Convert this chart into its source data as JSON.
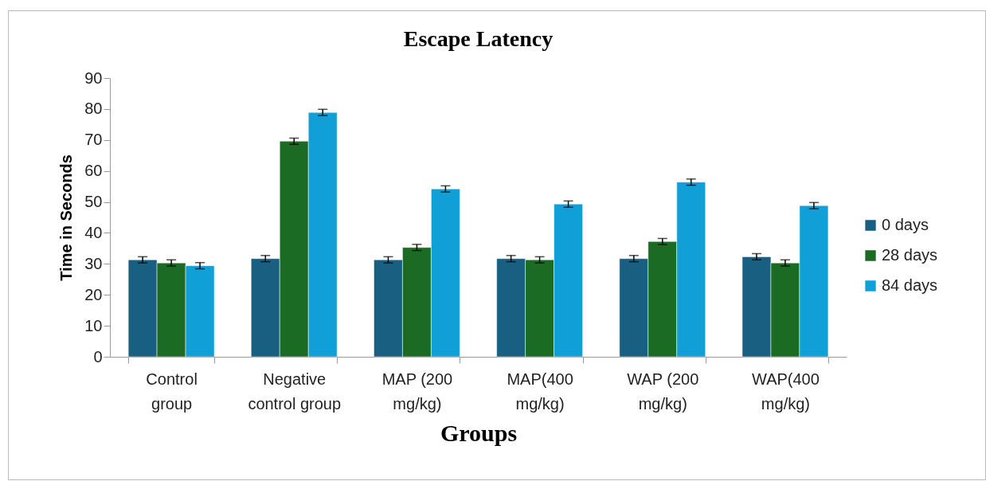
{
  "chart_data": {
    "type": "bar",
    "title": "Escape Latency",
    "xlabel": "Groups",
    "ylabel": "Time in Seconds",
    "categories": [
      "Control group",
      "Negative control group",
      "MAP (200 mg/kg)",
      "MAP(400 mg/kg)",
      "WAP (200 mg/kg)",
      "WAP(400 mg/kg)"
    ],
    "series": [
      {
        "name": "0 days",
        "color": "#185f82",
        "values": [
          31.3,
          31.7,
          31.3,
          31.7,
          31.7,
          32.3
        ],
        "errors": [
          1,
          1,
          1,
          1,
          1,
          1
        ]
      },
      {
        "name": "28 days",
        "color": "#1b6b24",
        "values": [
          30.3,
          69.6,
          35.3,
          31.3,
          37.2,
          30.3
        ],
        "errors": [
          1,
          1,
          1,
          1,
          1,
          1
        ]
      },
      {
        "name": "84 days",
        "color": "#109fd6",
        "values": [
          29.4,
          78.9,
          54.2,
          49.3,
          56.4,
          48.8
        ],
        "errors": [
          1,
          1,
          1,
          1,
          1,
          1
        ]
      }
    ],
    "ylim": [
      0,
      90
    ],
    "yticks": [
      0,
      10,
      20,
      30,
      40,
      50,
      60,
      70,
      80,
      90
    ],
    "grid": false,
    "legend": "right"
  }
}
